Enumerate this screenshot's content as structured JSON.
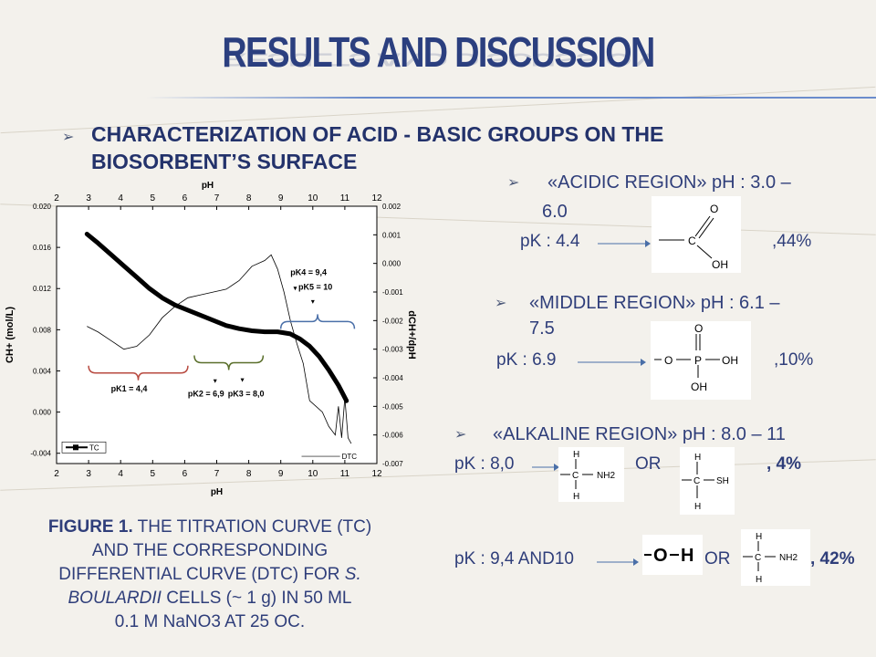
{
  "title": "RESULTS AND DISCUSSION",
  "heading_line1": "CHARACTERIZATION OF ACID - BASIC GROUPS ON THE",
  "heading_line2": "BIOSORBENT’S SURFACE",
  "bullet_glyph": "➢",
  "regions": {
    "acidic": {
      "label_a": "«ACIDIC REGION» pH : 3.0 –",
      "label_b": "6.0",
      "pk": "pK : 4.4",
      "pct": ",44%"
    },
    "middle": {
      "label_a": "«MIDDLE REGION» pH : 6.1 –",
      "label_b": "7.5",
      "pk": "pK : 6.9",
      "pct": ",10%"
    },
    "alkaline": {
      "label_a": "«ALKALINE REGION» pH : 8.0 – 11",
      "pk1": "pK : 8,0",
      "or1": "OR",
      "pct1": ", 4%",
      "pk2": "pK : 9,4 AND10",
      "or2": "OR",
      "pct2": ", 42%"
    }
  },
  "caption": {
    "bold": "FIGURE 1.",
    "line1": " THE TITRATION CURVE (TC)",
    "line2": "AND THE CORRESPONDING",
    "line3a": "DIFFERENTIAL CURVE (DTC) FOR ",
    "line3b": "S.",
    "line4a": "BOULARDII",
    "line4b": " CELLS (~ 1 g) IN 50 ML",
    "line5": "0.1 M NaNO3 AT 25 OC."
  },
  "molecules": {
    "carboxyl": [
      "O",
      "C",
      "OH"
    ],
    "phosphate": [
      "O",
      "O",
      "P",
      "OH",
      "OH"
    ],
    "amine": [
      "H",
      "C",
      "NH2",
      "H"
    ],
    "thiol": [
      "H",
      "C",
      "SH",
      "H"
    ],
    "hydroxyl": [
      "O",
      "H"
    ],
    "amine2": [
      "H",
      "C",
      "NH2",
      "H"
    ]
  },
  "chart_data": {
    "type": "line",
    "x_label_top": "pH",
    "x_label_bottom": "pH",
    "y_left_label": "CH+ (mol/L)",
    "y_right_label": "dCH+/dpH",
    "xlim": [
      2,
      12
    ],
    "ylim_left": [
      -0.005,
      0.02
    ],
    "ylim_right": [
      -0.007,
      0.002
    ],
    "x_ticks": [
      "2",
      "3",
      "4",
      "5",
      "6",
      "7",
      "8",
      "9",
      "10",
      "11",
      "12"
    ],
    "y_left_ticks": [
      "0.020",
      "0.016",
      "0.012",
      "0.008",
      "0.004",
      "0.000",
      "-0.004"
    ],
    "y_right_ticks": [
      "0.002",
      "0.001",
      "0.000",
      "-0.001",
      "-0.002",
      "-0.003",
      "-0.004",
      "-0.005",
      "-0.006",
      "-0.007"
    ],
    "legend": {
      "tc": "TC",
      "dtc": "DTC"
    },
    "series": [
      {
        "name": "TC",
        "axis": "left",
        "x": [
          2.95,
          3.3,
          3.7,
          4.1,
          4.5,
          4.9,
          5.3,
          5.7,
          6.1,
          6.5,
          6.9,
          7.3,
          7.7,
          8.1,
          8.5,
          8.9,
          9.3,
          9.6,
          9.9,
          10.2,
          10.5,
          10.8,
          11.05
        ],
        "y": [
          0.0173,
          0.0164,
          0.0153,
          0.0142,
          0.0131,
          0.012,
          0.0111,
          0.0104,
          0.0099,
          0.0094,
          0.0089,
          0.0084,
          0.0081,
          0.0079,
          0.0078,
          0.0078,
          0.0076,
          0.0071,
          0.0064,
          0.0054,
          0.0041,
          0.0026,
          0.0011
        ]
      },
      {
        "name": "DTC",
        "axis": "right",
        "x": [
          2.95,
          3.3,
          3.7,
          4.1,
          4.5,
          4.9,
          5.3,
          5.7,
          6.1,
          6.5,
          6.9,
          7.3,
          7.7,
          8.1,
          8.5,
          8.7,
          8.9,
          9.1,
          9.3,
          9.5,
          9.7,
          9.9,
          10.1,
          10.3,
          10.5,
          10.7,
          10.8,
          10.9,
          11.0,
          11.1,
          11.2
        ],
        "y": [
          -0.0022,
          -0.0024,
          -0.0027,
          -0.003,
          -0.0029,
          -0.0025,
          -0.0019,
          -0.0015,
          -0.0012,
          -0.0011,
          -0.001,
          -0.0009,
          -0.0006,
          -0.0001,
          0.0001,
          0.0003,
          -0.0002,
          -0.001,
          -0.002,
          -0.0028,
          -0.0035,
          -0.0048,
          -0.005,
          -0.0052,
          -0.0057,
          -0.006,
          -0.005,
          -0.0061,
          -0.0047,
          -0.0061,
          -0.0063
        ]
      }
    ],
    "annotations": {
      "pk1": "pK1 = 4,4",
      "pk2": "pK2 = 6,9",
      "pk3": "pK3 = 8,0",
      "pk4": "pK4 = 9,4",
      "pk5": "pK5 = 10"
    },
    "bracket_colors": {
      "pk1": "#b84a40",
      "pk23": "#5a6f2b",
      "pk45": "#4a6fa8"
    }
  }
}
